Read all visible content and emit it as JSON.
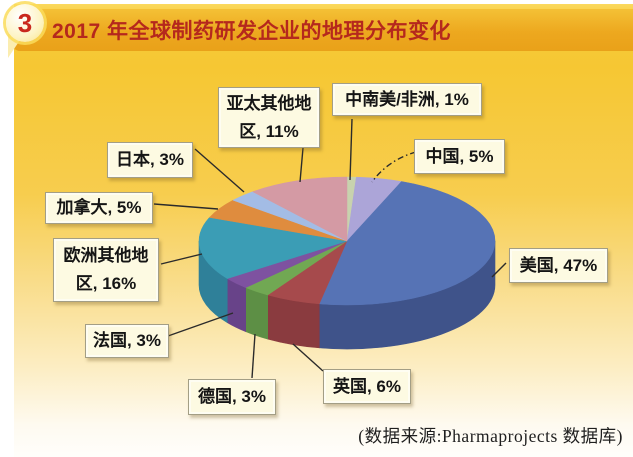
{
  "header": {
    "badge": "3",
    "title": "2017 年全球制药研发企业的地理分布变化"
  },
  "footer": {
    "source": "(数据来源:Pharmaprojects 数据库)"
  },
  "chart_data": {
    "type": "pie",
    "style": "3d-pie",
    "title": "2017 年全球制药研发企业的地理分布变化",
    "unit": "percent",
    "total": 100,
    "order": "clockwise-from-top",
    "legend_position": "callout-labels",
    "slices": [
      {
        "label": "中南美/非洲",
        "value": 1,
        "display": "中南美/非洲, 1%",
        "color": "#c8d2ae",
        "side_color": "#a6b08c"
      },
      {
        "label": "中国",
        "value": 5,
        "display": "中国, 5%",
        "color": "#aca5d8",
        "side_color": "#8b83b9"
      },
      {
        "label": "美国",
        "value": 47,
        "display": "美国, 47%",
        "color": "#5673b5",
        "side_color": "#3f538a"
      },
      {
        "label": "英国",
        "value": 6,
        "display": "英国, 6%",
        "color": "#a64a4c",
        "side_color": "#8a3b3f"
      },
      {
        "label": "德国",
        "value": 3,
        "display": "德国, 3%",
        "color": "#71a853",
        "side_color": "#5d8f45"
      },
      {
        "label": "法国",
        "value": 3,
        "display": "法国, 3%",
        "color": "#7e52a0",
        "side_color": "#684389"
      },
      {
        "label": "欧洲其他地区",
        "value": 16,
        "display": "欧洲其他地\n区, 16%",
        "color": "#3b9db5",
        "side_color": "#2f8099"
      },
      {
        "label": "加拿大",
        "value": 5,
        "display": "加拿大, 5%",
        "color": "#df8c3e",
        "side_color": "#b8702f"
      },
      {
        "label": "日本",
        "value": 3,
        "display": "日本, 3%",
        "color": "#a3bce5",
        "side_color": "#8298c0"
      },
      {
        "label": "亚太其他地区",
        "value": 11,
        "display": "亚太其他地\n区, 11%",
        "color": "#d49aa4",
        "side_color": "#b07d88"
      }
    ],
    "accent_colors": {
      "header_bar": "#eda81f",
      "title_text": "#b5281d",
      "callout_bg": "#fdfae2",
      "background_top": "#f6c733",
      "background_bottom": "#fffefb"
    }
  }
}
